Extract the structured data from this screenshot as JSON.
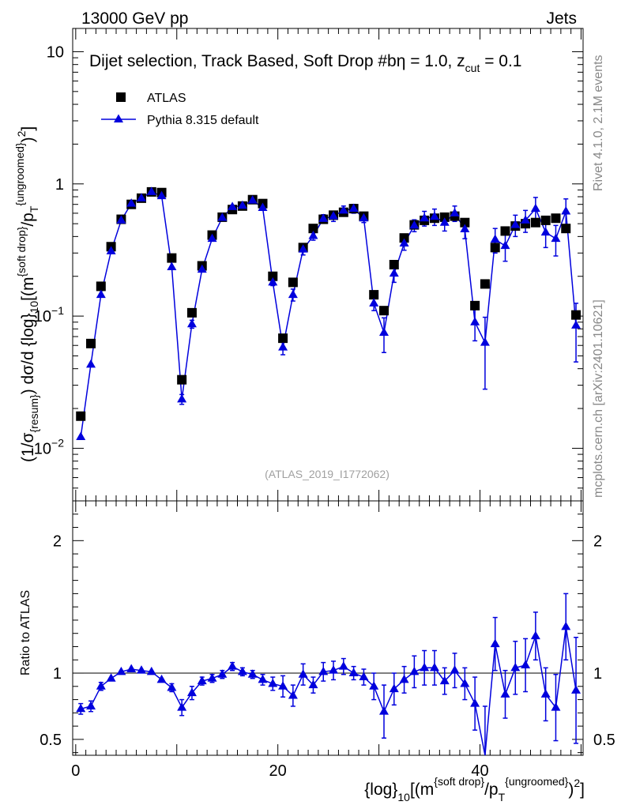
{
  "header": {
    "energy_label": "13000 GeV pp",
    "category_label": "Jets"
  },
  "side_labels": {
    "rivet": "Rivet 4.1.0,  2.1M events",
    "source": "mcplots.cern.ch [arXiv:2401.10621]"
  },
  "chart_data": {
    "type": "scatter",
    "title": "Dijet selection, Track Based, Soft Drop #b",
    "title_parts": {
      "main": "Dijet selection, Track Based, Soft Drop #b",
      "eta": "η = 1.0, z",
      "zsub": "cut",
      "zval": " = 0.1"
    },
    "analysis_id": "(ATLAS_2019_I1772062)",
    "x_axis": {
      "pieces": [
        "{log}",
        "10",
        "[(m",
        "{soft drop}",
        "/p",
        "T",
        "{ungroomed}",
        ")",
        "2",
        "]"
      ],
      "range": [
        -0.3,
        50.2
      ],
      "ticks": [
        0,
        20,
        40
      ],
      "tick_labels": [
        "0",
        "20",
        "40"
      ]
    },
    "y_axis": {
      "pieces": [
        "(1/σ",
        "{resum}",
        ") dσ/d {log}",
        "10",
        "[(m",
        "{soft drop}",
        "/p",
        "T",
        "{ungroomed}",
        ")",
        "2",
        "]"
      ],
      "scale": "log",
      "range": [
        0.004,
        15
      ],
      "major_ticks": [
        0.01,
        0.1,
        1,
        10
      ],
      "tick_labels": [
        {
          "base": "10",
          "exp": "−2"
        },
        {
          "base": "10",
          "exp": "−1"
        },
        {
          "base": "1",
          "exp": ""
        },
        {
          "base": "10",
          "exp": ""
        }
      ]
    },
    "ratio_axis": {
      "label": "Ratio to ATLAS",
      "range": [
        0.38,
        2.3
      ],
      "ticks": [
        0.5,
        1,
        2
      ],
      "tick_labels": [
        "0.5",
        "1",
        "2"
      ]
    },
    "legend": {
      "position": "top-left",
      "entries": [
        "ATLAS",
        "Pythia 8.315 default"
      ]
    },
    "series": [
      {
        "name": "ATLAS",
        "marker": "square",
        "color": "#000000",
        "x": [
          0.5,
          1.5,
          2.5,
          3.5,
          4.5,
          5.5,
          6.5,
          7.5,
          8.5,
          9.5,
          10.5,
          11.5,
          12.5,
          13.5,
          14.5,
          15.5,
          16.5,
          17.5,
          18.5,
          19.5,
          20.5,
          21.5,
          22.5,
          23.5,
          24.5,
          25.5,
          26.5,
          27.5,
          28.5,
          29.5,
          30.5,
          31.5,
          32.5,
          33.5,
          34.5,
          35.5,
          36.5,
          37.5,
          38.5,
          39.5,
          40.5,
          41.5,
          42.5,
          43.5,
          44.5,
          45.5,
          46.5,
          47.5,
          48.5,
          49.5
        ],
        "y": [
          0.0175,
          0.062,
          0.168,
          0.335,
          0.54,
          0.7,
          0.78,
          0.87,
          0.86,
          0.275,
          0.033,
          0.106,
          0.24,
          0.41,
          0.56,
          0.64,
          0.68,
          0.76,
          0.71,
          0.2,
          0.068,
          0.18,
          0.33,
          0.46,
          0.54,
          0.58,
          0.61,
          0.65,
          0.57,
          0.145,
          0.11,
          0.245,
          0.39,
          0.49,
          0.53,
          0.55,
          0.56,
          0.57,
          0.51,
          0.12,
          0.175,
          0.33,
          0.44,
          0.48,
          0.5,
          0.51,
          0.53,
          0.55,
          0.46,
          0.102
        ]
      },
      {
        "name": "Pythia 8.315 default",
        "marker": "triangle",
        "color": "#0000dd",
        "x": [
          0.5,
          1.5,
          2.5,
          3.5,
          4.5,
          5.5,
          6.5,
          7.5,
          8.5,
          9.5,
          10.5,
          11.5,
          12.5,
          13.5,
          14.5,
          15.5,
          16.5,
          17.5,
          18.5,
          19.5,
          20.5,
          21.5,
          22.5,
          23.5,
          24.5,
          25.5,
          26.5,
          27.5,
          28.5,
          29.5,
          30.5,
          31.5,
          32.5,
          33.5,
          34.5,
          35.5,
          36.5,
          37.5,
          38.5,
          39.5,
          40.5,
          41.5,
          42.5,
          43.5,
          44.5,
          45.5,
          46.5,
          47.5,
          48.5,
          49.5
        ],
        "y": [
          0.0122,
          0.043,
          0.145,
          0.31,
          0.53,
          0.71,
          0.78,
          0.87,
          0.81,
          0.235,
          0.0235,
          0.087,
          0.225,
          0.385,
          0.555,
          0.67,
          0.685,
          0.75,
          0.66,
          0.18,
          0.058,
          0.145,
          0.32,
          0.405,
          0.545,
          0.57,
          0.63,
          0.65,
          0.55,
          0.125,
          0.075,
          0.21,
          0.355,
          0.485,
          0.55,
          0.565,
          0.51,
          0.6,
          0.455,
          0.09,
          0.063,
          0.38,
          0.34,
          0.49,
          0.53,
          0.65,
          0.43,
          0.385,
          0.62,
          0.085
        ],
        "y_err": [
          0.0006,
          0.002,
          0.005,
          0.01,
          0.015,
          0.02,
          0.02,
          0.02,
          0.02,
          0.01,
          0.002,
          0.006,
          0.01,
          0.015,
          0.02,
          0.03,
          0.03,
          0.03,
          0.03,
          0.01,
          0.007,
          0.015,
          0.03,
          0.03,
          0.04,
          0.05,
          0.05,
          0.05,
          0.04,
          0.015,
          0.022,
          0.03,
          0.04,
          0.05,
          0.07,
          0.08,
          0.07,
          0.08,
          0.07,
          0.025,
          0.035,
          0.08,
          0.08,
          0.09,
          0.1,
          0.14,
          0.1,
          0.1,
          0.15,
          0.04
        ],
        "ratio": [
          0.73,
          0.75,
          0.9,
          0.96,
          1.01,
          1.03,
          1.02,
          1.01,
          0.95,
          0.89,
          0.74,
          0.85,
          0.94,
          0.96,
          0.99,
          1.05,
          1.01,
          0.99,
          0.95,
          0.92,
          0.9,
          0.83,
          0.99,
          0.91,
          1.01,
          1.02,
          1.05,
          1.0,
          0.97,
          0.9,
          0.71,
          0.88,
          0.95,
          1.01,
          1.04,
          1.04,
          0.94,
          1.02,
          0.92,
          0.77,
          0.35,
          1.22,
          0.84,
          1.04,
          1.06,
          1.28,
          0.84,
          0.74,
          1.35,
          0.87
        ],
        "ratio_err": [
          0.04,
          0.04,
          0.03,
          0.02,
          0.02,
          0.02,
          0.02,
          0.02,
          0.02,
          0.03,
          0.06,
          0.05,
          0.03,
          0.03,
          0.03,
          0.03,
          0.03,
          0.03,
          0.04,
          0.05,
          0.08,
          0.08,
          0.08,
          0.06,
          0.07,
          0.07,
          0.06,
          0.05,
          0.06,
          0.1,
          0.2,
          0.12,
          0.1,
          0.12,
          0.13,
          0.13,
          0.1,
          0.13,
          0.12,
          0.2,
          0.4,
          0.2,
          0.18,
          0.2,
          0.2,
          0.18,
          0.2,
          0.25,
          0.25,
          0.4
        ]
      }
    ]
  }
}
